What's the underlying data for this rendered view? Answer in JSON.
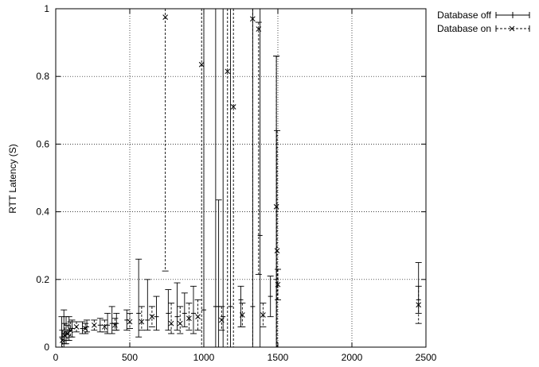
{
  "chart_data": {
    "type": "scatter",
    "title": "",
    "xlabel": "",
    "ylabel": "RTT Latency (S)",
    "xlim": [
      0,
      2500
    ],
    "ylim": [
      0,
      1
    ],
    "x_ticks": [
      "0",
      "500",
      "1000",
      "1500",
      "2000",
      "2500"
    ],
    "y_ticks": [
      "0",
      "0.2",
      "0.4",
      "0.6",
      "0.8",
      "1"
    ],
    "grid": true,
    "legend_position": "outside-top-right",
    "series": [
      {
        "name": "Database off",
        "marker": "plus",
        "line_style": "solid",
        "points": [
          {
            "x": 40,
            "y": 0.03,
            "lo": 0.0,
            "hi": 0.09
          },
          {
            "x": 55,
            "y": 0.04,
            "lo": 0.0,
            "hi": 0.11
          },
          {
            "x": 70,
            "y": 0.045,
            "lo": 0.01,
            "hi": 0.09
          },
          {
            "x": 90,
            "y": 0.05,
            "lo": 0.02,
            "hi": 0.09
          },
          {
            "x": 110,
            "y": 0.055,
            "lo": 0.03,
            "hi": 0.08
          },
          {
            "x": 180,
            "y": 0.055,
            "lo": 0.04,
            "hi": 0.075
          },
          {
            "x": 210,
            "y": 0.06,
            "lo": 0.045,
            "hi": 0.08
          },
          {
            "x": 300,
            "y": 0.065,
            "lo": 0.045,
            "hi": 0.085
          },
          {
            "x": 350,
            "y": 0.065,
            "lo": 0.04,
            "hi": 0.1
          },
          {
            "x": 380,
            "y": 0.07,
            "lo": 0.04,
            "hi": 0.12
          },
          {
            "x": 410,
            "y": 0.07,
            "lo": 0.05,
            "hi": 0.1
          },
          {
            "x": 480,
            "y": 0.08,
            "lo": 0.05,
            "hi": 0.11
          },
          {
            "x": 560,
            "y": 0.1,
            "lo": 0.03,
            "hi": 0.26
          },
          {
            "x": 620,
            "y": 0.08,
            "lo": 0.05,
            "hi": 0.2
          },
          {
            "x": 680,
            "y": 0.09,
            "lo": 0.05,
            "hi": 0.15
          },
          {
            "x": 760,
            "y": 0.1,
            "lo": 0.05,
            "hi": 0.17
          },
          {
            "x": 820,
            "y": 0.09,
            "lo": 0.05,
            "hi": 0.19
          },
          {
            "x": 870,
            "y": 0.1,
            "lo": 0.06,
            "hi": 0.16
          },
          {
            "x": 930,
            "y": 0.1,
            "lo": 0.04,
            "hi": 0.18
          },
          {
            "x": 1000,
            "y": 0.11,
            "lo": 0.0,
            "hi": 1.0
          },
          {
            "x": 1080,
            "y": 0.12,
            "lo": 0.0,
            "hi": 1.0
          },
          {
            "x": 1100,
            "y": 0.12,
            "lo": 0.0,
            "hi": 0.435
          },
          {
            "x": 1130,
            "y": 0.09,
            "lo": 0.0,
            "hi": 1.0
          },
          {
            "x": 1180,
            "y": 0.12,
            "lo": 0.0,
            "hi": 1.0
          },
          {
            "x": 1250,
            "y": 0.14,
            "lo": 0.06,
            "hi": 0.18
          },
          {
            "x": 1330,
            "y": 0.12,
            "lo": 0.0,
            "hi": 1.0
          },
          {
            "x": 1380,
            "y": 0.33,
            "lo": 0.0,
            "hi": 1.0
          },
          {
            "x": 1450,
            "y": 0.15,
            "lo": 0.09,
            "hi": 0.21
          },
          {
            "x": 1490,
            "y": 0.2,
            "lo": 0.0,
            "hi": 0.86
          },
          {
            "x": 2450,
            "y": 0.14,
            "lo": 0.1,
            "hi": 0.25
          }
        ]
      },
      {
        "name": "Database on",
        "marker": "x",
        "line_style": "dashed",
        "points": [
          {
            "x": 45,
            "y": 0.02,
            "lo": 0.0,
            "hi": 0.05
          },
          {
            "x": 60,
            "y": 0.035,
            "lo": 0.01,
            "hi": 0.07
          },
          {
            "x": 80,
            "y": 0.04,
            "lo": 0.02,
            "hi": 0.065
          },
          {
            "x": 100,
            "y": 0.05,
            "lo": 0.03,
            "hi": 0.075
          },
          {
            "x": 140,
            "y": 0.06,
            "lo": 0.045,
            "hi": 0.075
          },
          {
            "x": 200,
            "y": 0.055,
            "lo": 0.04,
            "hi": 0.07
          },
          {
            "x": 260,
            "y": 0.065,
            "lo": 0.05,
            "hi": 0.08
          },
          {
            "x": 330,
            "y": 0.06,
            "lo": 0.045,
            "hi": 0.08
          },
          {
            "x": 400,
            "y": 0.065,
            "lo": 0.05,
            "hi": 0.085
          },
          {
            "x": 500,
            "y": 0.075,
            "lo": 0.055,
            "hi": 0.1
          },
          {
            "x": 580,
            "y": 0.075,
            "lo": 0.05,
            "hi": 0.12
          },
          {
            "x": 650,
            "y": 0.09,
            "lo": 0.06,
            "hi": 0.12
          },
          {
            "x": 740,
            "y": 0.975,
            "lo": 0.225,
            "hi": 1.0
          },
          {
            "x": 780,
            "y": 0.07,
            "lo": 0.04,
            "hi": 0.13
          },
          {
            "x": 840,
            "y": 0.07,
            "lo": 0.04,
            "hi": 0.12
          },
          {
            "x": 900,
            "y": 0.085,
            "lo": 0.05,
            "hi": 0.13
          },
          {
            "x": 960,
            "y": 0.09,
            "lo": 0.05,
            "hi": 0.14
          },
          {
            "x": 985,
            "y": 0.835,
            "lo": 0.0,
            "hi": 1.0
          },
          {
            "x": 1120,
            "y": 0.08,
            "lo": 0.05,
            "hi": 0.12
          },
          {
            "x": 1160,
            "y": 0.815,
            "lo": 0.0,
            "hi": 1.0
          },
          {
            "x": 1200,
            "y": 0.71,
            "lo": 0.0,
            "hi": 1.0
          },
          {
            "x": 1260,
            "y": 0.095,
            "lo": 0.06,
            "hi": 0.13
          },
          {
            "x": 1330,
            "y": 0.97,
            "lo": 0.0,
            "hi": 1.0
          },
          {
            "x": 1370,
            "y": 0.94,
            "lo": 0.215,
            "hi": 0.96
          },
          {
            "x": 1400,
            "y": 0.095,
            "lo": 0.06,
            "hi": 0.13
          },
          {
            "x": 1490,
            "y": 0.415,
            "lo": 0.0,
            "hi": 0.86
          },
          {
            "x": 1495,
            "y": 0.285,
            "lo": 0.0,
            "hi": 0.64
          },
          {
            "x": 1500,
            "y": 0.185,
            "lo": 0.14,
            "hi": 0.23
          },
          {
            "x": 2450,
            "y": 0.125,
            "lo": 0.07,
            "hi": 0.18
          }
        ]
      }
    ]
  }
}
